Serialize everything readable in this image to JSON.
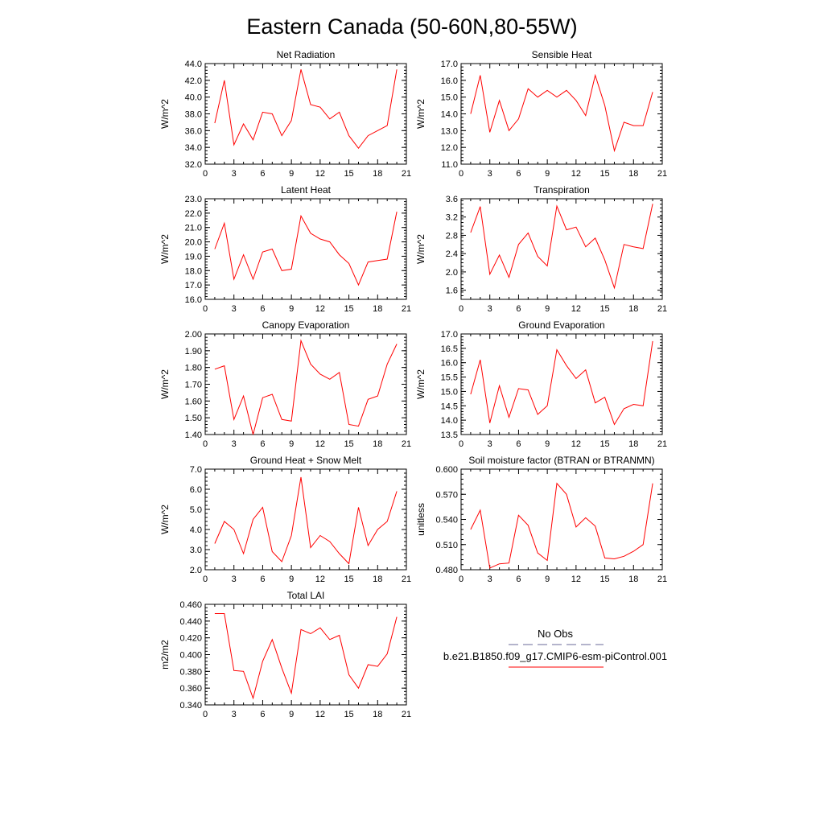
{
  "title": "Eastern Canada (50-60N,80-55W)",
  "colors": {
    "series": "#ff0000",
    "obs": "#6a6a9a",
    "axis": "#000000"
  },
  "legend": {
    "entries": [
      {
        "label": "No Obs",
        "style": "dashed",
        "color": "#6a6a9a"
      },
      {
        "label": "b.e21.B1850.f09_g17.CMIP6-esm-piControl.001",
        "style": "solid",
        "color": "#ff0000"
      }
    ]
  },
  "chart_data": [
    {
      "type": "line",
      "title": "Net Radiation",
      "ylabel": "W/m^2",
      "xlabel": "",
      "xlim": [
        0,
        21
      ],
      "xticks": [
        "0",
        "3",
        "6",
        "9",
        "12",
        "15",
        "18",
        "21"
      ],
      "ylim": [
        32.0,
        44.0
      ],
      "yticks": [
        "32.0",
        "34.0",
        "36.0",
        "38.0",
        "40.0",
        "42.0",
        "44.0"
      ],
      "x": [
        1,
        2,
        3,
        4,
        5,
        6,
        7,
        8,
        9,
        10,
        11,
        12,
        13,
        14,
        15,
        16,
        17,
        18,
        19,
        20
      ],
      "series": [
        {
          "name": "b.e21.B1850.f09_g17.CMIP6-esm-piControl.001",
          "values": [
            36.9,
            42.0,
            34.3,
            36.8,
            34.9,
            38.2,
            38.0,
            35.4,
            37.2,
            43.3,
            39.1,
            38.8,
            37.4,
            38.2,
            35.4,
            33.9,
            35.4,
            36.0,
            36.6,
            43.3
          ]
        }
      ]
    },
    {
      "type": "line",
      "title": "Sensible Heat",
      "ylabel": "W/m^2",
      "xlabel": "",
      "xlim": [
        0,
        21
      ],
      "xticks": [
        "0",
        "3",
        "6",
        "9",
        "12",
        "15",
        "18",
        "21"
      ],
      "ylim": [
        11.0,
        17.0
      ],
      "yticks": [
        "11.0",
        "12.0",
        "13.0",
        "14.0",
        "15.0",
        "16.0",
        "17.0"
      ],
      "x": [
        1,
        2,
        3,
        4,
        5,
        6,
        7,
        8,
        9,
        10,
        11,
        12,
        13,
        14,
        15,
        16,
        17,
        18,
        19,
        20
      ],
      "series": [
        {
          "name": "b.e21.B1850.f09_g17.CMIP6-esm-piControl.001",
          "values": [
            14.0,
            16.3,
            12.9,
            14.8,
            13.0,
            13.7,
            15.5,
            15.0,
            15.4,
            15.0,
            15.4,
            14.8,
            13.9,
            16.3,
            14.5,
            11.8,
            13.5,
            13.3,
            13.3,
            15.3
          ]
        }
      ]
    },
    {
      "type": "line",
      "title": "Latent Heat",
      "ylabel": "W/m^2",
      "xlabel": "",
      "xlim": [
        0,
        21
      ],
      "xticks": [
        "0",
        "3",
        "6",
        "9",
        "12",
        "15",
        "18",
        "21"
      ],
      "ylim": [
        16.0,
        23.0
      ],
      "yticks": [
        "16.0",
        "17.0",
        "18.0",
        "19.0",
        "20.0",
        "21.0",
        "22.0",
        "23.0"
      ],
      "x": [
        1,
        2,
        3,
        4,
        5,
        6,
        7,
        8,
        9,
        10,
        11,
        12,
        13,
        14,
        15,
        16,
        17,
        18,
        19,
        20
      ],
      "series": [
        {
          "name": "b.e21.B1850.f09_g17.CMIP6-esm-piControl.001",
          "values": [
            19.5,
            21.3,
            17.4,
            19.1,
            17.4,
            19.3,
            19.5,
            18.0,
            18.1,
            21.8,
            20.6,
            20.2,
            20.0,
            19.1,
            18.5,
            17.0,
            18.6,
            18.7,
            18.8,
            22.1
          ]
        }
      ]
    },
    {
      "type": "line",
      "title": "Transpiration",
      "ylabel": "W/m^2",
      "xlabel": "",
      "xlim": [
        0,
        21
      ],
      "xticks": [
        "0",
        "3",
        "6",
        "9",
        "12",
        "15",
        "18",
        "21"
      ],
      "ylim": [
        1.4,
        3.6
      ],
      "yticks": [
        "1.6",
        "2.0",
        "2.4",
        "2.8",
        "3.2",
        "3.6"
      ],
      "x": [
        1,
        2,
        3,
        4,
        5,
        6,
        7,
        8,
        9,
        10,
        11,
        12,
        13,
        14,
        15,
        16,
        17,
        18,
        19,
        20
      ],
      "series": [
        {
          "name": "b.e21.B1850.f09_g17.CMIP6-esm-piControl.001",
          "values": [
            2.86,
            3.43,
            1.95,
            2.37,
            1.88,
            2.6,
            2.85,
            2.34,
            2.13,
            3.44,
            2.92,
            2.98,
            2.55,
            2.74,
            2.26,
            1.65,
            2.6,
            2.55,
            2.51,
            3.49
          ]
        }
      ]
    },
    {
      "type": "line",
      "title": "Canopy Evaporation",
      "ylabel": "W/m^2",
      "xlabel": "",
      "xlim": [
        0,
        21
      ],
      "xticks": [
        "0",
        "3",
        "6",
        "9",
        "12",
        "15",
        "18",
        "21"
      ],
      "ylim": [
        1.4,
        2.0
      ],
      "yticks": [
        "1.40",
        "1.50",
        "1.60",
        "1.70",
        "1.80",
        "1.90",
        "2.00"
      ],
      "x": [
        1,
        2,
        3,
        4,
        5,
        6,
        7,
        8,
        9,
        10,
        11,
        12,
        13,
        14,
        15,
        16,
        17,
        18,
        19,
        20
      ],
      "series": [
        {
          "name": "b.e21.B1850.f09_g17.CMIP6-esm-piControl.001",
          "values": [
            1.79,
            1.81,
            1.49,
            1.63,
            1.4,
            1.62,
            1.64,
            1.49,
            1.48,
            1.96,
            1.82,
            1.76,
            1.73,
            1.77,
            1.46,
            1.45,
            1.61,
            1.63,
            1.82,
            1.94
          ]
        }
      ]
    },
    {
      "type": "line",
      "title": "Ground Evaporation",
      "ylabel": "W/m^2",
      "xlabel": "",
      "xlim": [
        0,
        21
      ],
      "xticks": [
        "0",
        "3",
        "6",
        "9",
        "12",
        "15",
        "18",
        "21"
      ],
      "ylim": [
        13.5,
        17.0
      ],
      "yticks": [
        "13.5",
        "14.0",
        "14.5",
        "15.0",
        "15.5",
        "16.0",
        "16.5",
        "17.0"
      ],
      "x": [
        1,
        2,
        3,
        4,
        5,
        6,
        7,
        8,
        9,
        10,
        11,
        12,
        13,
        14,
        15,
        16,
        17,
        18,
        19,
        20
      ],
      "series": [
        {
          "name": "b.e21.B1850.f09_g17.CMIP6-esm-piControl.001",
          "values": [
            14.9,
            16.1,
            13.9,
            15.2,
            14.1,
            15.1,
            15.05,
            14.2,
            14.5,
            16.45,
            15.9,
            15.45,
            15.75,
            14.6,
            14.8,
            13.85,
            14.4,
            14.55,
            14.5,
            16.75
          ]
        }
      ]
    },
    {
      "type": "line",
      "title": "Ground Heat + Snow Melt",
      "ylabel": "W/m^2",
      "xlabel": "",
      "xlim": [
        0,
        21
      ],
      "xticks": [
        "0",
        "3",
        "6",
        "9",
        "12",
        "15",
        "18",
        "21"
      ],
      "ylim": [
        2.0,
        7.0
      ],
      "yticks": [
        "2.0",
        "3.0",
        "4.0",
        "5.0",
        "6.0",
        "7.0"
      ],
      "x": [
        1,
        2,
        3,
        4,
        5,
        6,
        7,
        8,
        9,
        10,
        11,
        12,
        13,
        14,
        15,
        16,
        17,
        18,
        19,
        20
      ],
      "series": [
        {
          "name": "b.e21.B1850.f09_g17.CMIP6-esm-piControl.001",
          "values": [
            3.3,
            4.4,
            4.0,
            2.8,
            4.5,
            5.1,
            2.9,
            2.4,
            3.7,
            6.6,
            3.1,
            3.7,
            3.4,
            2.8,
            2.3,
            5.1,
            3.2,
            4.0,
            4.4,
            5.9
          ]
        }
      ]
    },
    {
      "type": "line",
      "title": "Soil moisture factor (BTRAN or BTRANMN)",
      "ylabel": "unitless",
      "xlabel": "",
      "xlim": [
        0,
        21
      ],
      "xticks": [
        "0",
        "3",
        "6",
        "9",
        "12",
        "15",
        "18",
        "21"
      ],
      "ylim": [
        0.48,
        0.6
      ],
      "yticks": [
        "0.480",
        "0.510",
        "0.540",
        "0.570",
        "0.600"
      ],
      "x": [
        1,
        2,
        3,
        4,
        5,
        6,
        7,
        8,
        9,
        10,
        11,
        12,
        13,
        14,
        15,
        16,
        17,
        18,
        19,
        20
      ],
      "series": [
        {
          "name": "b.e21.B1850.f09_g17.CMIP6-esm-piControl.001",
          "values": [
            0.528,
            0.551,
            0.482,
            0.487,
            0.488,
            0.545,
            0.533,
            0.5,
            0.491,
            0.583,
            0.57,
            0.531,
            0.542,
            0.532,
            0.494,
            0.493,
            0.496,
            0.502,
            0.51,
            0.583
          ]
        }
      ]
    },
    {
      "type": "line",
      "title": "Total LAI",
      "ylabel": "m2/m2",
      "xlabel": "",
      "xlim": [
        0,
        21
      ],
      "xticks": [
        "0",
        "3",
        "6",
        "9",
        "12",
        "15",
        "18",
        "21"
      ],
      "ylim": [
        0.34,
        0.46
      ],
      "yticks": [
        "0.340",
        "0.360",
        "0.380",
        "0.400",
        "0.420",
        "0.440",
        "0.460"
      ],
      "x": [
        1,
        2,
        3,
        4,
        5,
        6,
        7,
        8,
        9,
        10,
        11,
        12,
        13,
        14,
        15,
        16,
        17,
        18,
        19,
        20
      ],
      "series": [
        {
          "name": "b.e21.B1850.f09_g17.CMIP6-esm-piControl.001",
          "values": [
            0.449,
            0.449,
            0.381,
            0.38,
            0.348,
            0.392,
            0.418,
            0.384,
            0.354,
            0.43,
            0.425,
            0.432,
            0.418,
            0.423,
            0.376,
            0.36,
            0.388,
            0.386,
            0.401,
            0.445
          ]
        }
      ]
    }
  ]
}
